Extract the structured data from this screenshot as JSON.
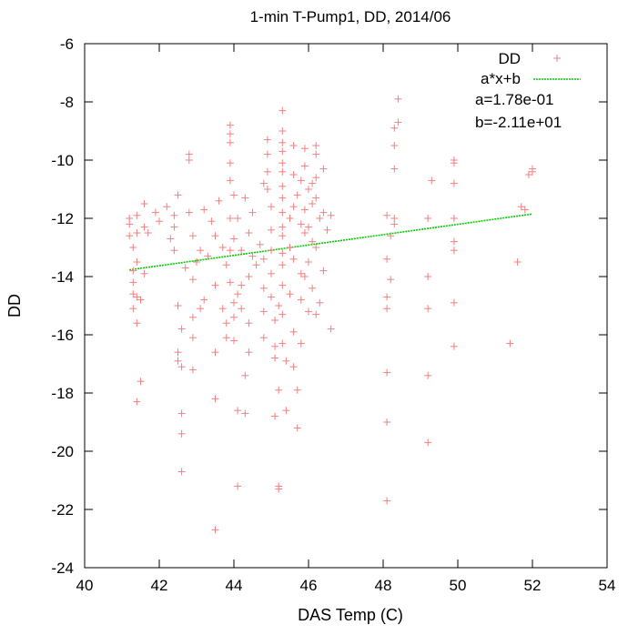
{
  "chart_data": {
    "type": "scatter",
    "title": "1-min T-Pump1, DD, 2014/06",
    "xlabel": "DAS Temp (C)",
    "ylabel": "DD",
    "xlim": [
      40,
      54
    ],
    "ylim": [
      -24,
      -6
    ],
    "xticks": [
      40,
      42,
      44,
      46,
      48,
      50,
      52,
      54
    ],
    "yticks": [
      -24,
      -22,
      -20,
      -18,
      -16,
      -14,
      -12,
      -10,
      -8,
      -6
    ],
    "xtick_labels": [
      "40",
      "42",
      "44",
      "46",
      "48",
      "50",
      "52",
      "54"
    ],
    "ytick_labels": [
      "-24",
      "-22",
      "-20",
      "-18",
      "-16",
      "-14",
      "-12",
      "-10",
      "-8",
      "-6"
    ],
    "grid": false,
    "legend_position": "top-right",
    "series": [
      {
        "name": "DD",
        "kind": "scatter",
        "marker": "plus",
        "color": "#f08080",
        "points": [
          [
            41.2,
            -12.0
          ],
          [
            41.2,
            -12.2
          ],
          [
            41.2,
            -12.6
          ],
          [
            41.3,
            -13.0
          ],
          [
            41.3,
            -13.8
          ],
          [
            41.3,
            -14.2
          ],
          [
            41.3,
            -14.6
          ],
          [
            41.3,
            -15.1
          ],
          [
            41.4,
            -11.9
          ],
          [
            41.4,
            -12.5
          ],
          [
            41.4,
            -13.5
          ],
          [
            41.4,
            -14.7
          ],
          [
            41.4,
            -15.6
          ],
          [
            41.4,
            -18.3
          ],
          [
            41.5,
            -17.6
          ],
          [
            41.5,
            -14.8
          ],
          [
            41.6,
            -11.5
          ],
          [
            41.6,
            -12.3
          ],
          [
            41.6,
            -13.9
          ],
          [
            41.7,
            -12.5
          ],
          [
            41.9,
            -11.8
          ],
          [
            42.0,
            -12.1
          ],
          [
            42.2,
            -11.6
          ],
          [
            42.3,
            -12.7
          ],
          [
            42.4,
            -11.9
          ],
          [
            42.4,
            -12.3
          ],
          [
            42.4,
            -13.1
          ],
          [
            42.5,
            -11.2
          ],
          [
            42.5,
            -15.0
          ],
          [
            42.5,
            -16.6
          ],
          [
            42.5,
            -16.9
          ],
          [
            42.6,
            -17.1
          ],
          [
            42.6,
            -18.7
          ],
          [
            42.6,
            -19.4
          ],
          [
            42.6,
            -20.7
          ],
          [
            42.6,
            -15.8
          ],
          [
            42.7,
            -13.7
          ],
          [
            42.8,
            -9.8
          ],
          [
            42.8,
            -10.0
          ],
          [
            42.8,
            -11.8
          ],
          [
            42.9,
            -12.6
          ],
          [
            42.9,
            -14.1
          ],
          [
            42.9,
            -15.4
          ],
          [
            42.9,
            -16.1
          ],
          [
            42.9,
            -17.2
          ],
          [
            43.0,
            -13.5
          ],
          [
            43.1,
            -13.1
          ],
          [
            43.1,
            -15.1
          ],
          [
            43.2,
            -11.7
          ],
          [
            43.2,
            -14.8
          ],
          [
            43.3,
            -13.3
          ],
          [
            43.4,
            -12.1
          ],
          [
            43.5,
            -12.6
          ],
          [
            43.5,
            -14.3
          ],
          [
            43.5,
            -16.6
          ],
          [
            43.5,
            -18.2
          ],
          [
            43.5,
            -22.7
          ],
          [
            43.6,
            -11.4
          ],
          [
            43.7,
            -13.0
          ],
          [
            43.7,
            -15.1
          ],
          [
            43.8,
            -13.6
          ],
          [
            43.8,
            -15.6
          ],
          [
            43.8,
            -16.1
          ],
          [
            43.9,
            -8.8
          ],
          [
            43.9,
            -9.1
          ],
          [
            43.9,
            -9.4
          ],
          [
            43.9,
            -10.1
          ],
          [
            43.9,
            -10.7
          ],
          [
            43.9,
            -12.0
          ],
          [
            43.9,
            -13.1
          ],
          [
            43.9,
            -14.2
          ],
          [
            44.0,
            -11.2
          ],
          [
            44.0,
            -12.7
          ],
          [
            44.0,
            -14.9
          ],
          [
            44.0,
            -15.4
          ],
          [
            44.0,
            -16.2
          ],
          [
            44.1,
            -18.6
          ],
          [
            44.1,
            -21.2
          ],
          [
            44.1,
            -12.0
          ],
          [
            44.1,
            -14.6
          ],
          [
            44.2,
            -13.1
          ],
          [
            44.2,
            -14.3
          ],
          [
            44.2,
            -15.1
          ],
          [
            44.3,
            -17.4
          ],
          [
            44.3,
            -18.7
          ],
          [
            44.3,
            -11.3
          ],
          [
            44.4,
            -12.5
          ],
          [
            44.4,
            -14.0
          ],
          [
            44.4,
            -15.6
          ],
          [
            44.4,
            -16.6
          ],
          [
            44.5,
            -13.3
          ],
          [
            44.5,
            -11.8
          ],
          [
            44.6,
            -13.6
          ],
          [
            44.7,
            -12.9
          ],
          [
            44.8,
            -10.8
          ],
          [
            44.8,
            -13.4
          ],
          [
            44.8,
            -14.4
          ],
          [
            44.8,
            -15.2
          ],
          [
            44.8,
            -16.1
          ],
          [
            44.9,
            -9.3
          ],
          [
            44.9,
            -9.8
          ],
          [
            44.9,
            -10.4
          ],
          [
            44.9,
            -11.0
          ],
          [
            45.0,
            -11.6
          ],
          [
            45.0,
            -12.4
          ],
          [
            45.0,
            -13.1
          ],
          [
            45.0,
            -13.9
          ],
          [
            45.0,
            -14.7
          ],
          [
            45.1,
            -15.5
          ],
          [
            45.1,
            -16.4
          ],
          [
            45.1,
            -16.8
          ],
          [
            45.1,
            -18.8
          ],
          [
            45.2,
            -21.3
          ],
          [
            45.2,
            -21.2
          ],
          [
            45.2,
            -17.9
          ],
          [
            45.2,
            -15.0
          ],
          [
            45.3,
            -8.3
          ],
          [
            45.3,
            -9.0
          ],
          [
            45.3,
            -9.4
          ],
          [
            45.3,
            -9.7
          ],
          [
            45.3,
            -10.1
          ],
          [
            45.3,
            -10.4
          ],
          [
            45.3,
            -10.9
          ],
          [
            45.3,
            -11.3
          ],
          [
            45.3,
            -11.8
          ],
          [
            45.3,
            -12.3
          ],
          [
            45.3,
            -12.6
          ],
          [
            45.3,
            -13.2
          ],
          [
            45.3,
            -13.6
          ],
          [
            45.3,
            -14.3
          ],
          [
            45.3,
            -15.3
          ],
          [
            45.3,
            -16.3
          ],
          [
            45.4,
            -16.9
          ],
          [
            45.4,
            -18.6
          ],
          [
            45.5,
            -12.0
          ],
          [
            45.5,
            -13.0
          ],
          [
            45.5,
            -14.6
          ],
          [
            45.6,
            -9.5
          ],
          [
            45.6,
            -10.5
          ],
          [
            45.6,
            -11.6
          ],
          [
            45.6,
            -13.4
          ],
          [
            45.6,
            -15.9
          ],
          [
            45.6,
            -17.1
          ],
          [
            45.7,
            -17.9
          ],
          [
            45.7,
            -19.2
          ],
          [
            45.7,
            -11.2
          ],
          [
            45.8,
            -10.7
          ],
          [
            45.8,
            -12.2
          ],
          [
            45.8,
            -13.9
          ],
          [
            45.8,
            -14.8
          ],
          [
            45.8,
            -16.3
          ],
          [
            45.9,
            -9.6
          ],
          [
            45.9,
            -10.2
          ],
          [
            45.9,
            -11.7
          ],
          [
            45.9,
            -12.5
          ],
          [
            45.9,
            -14.0
          ],
          [
            46.0,
            -11.0
          ],
          [
            46.0,
            -12.3
          ],
          [
            46.0,
            -13.5
          ],
          [
            46.0,
            -15.2
          ],
          [
            46.1,
            -10.8
          ],
          [
            46.1,
            -11.5
          ],
          [
            46.1,
            -12.8
          ],
          [
            46.1,
            -14.4
          ],
          [
            46.2,
            -9.5
          ],
          [
            46.2,
            -9.8
          ],
          [
            46.2,
            -10.6
          ],
          [
            46.2,
            -11.3
          ],
          [
            46.2,
            -13.0
          ],
          [
            46.2,
            -15.3
          ],
          [
            46.3,
            -12.0
          ],
          [
            46.3,
            -14.9
          ],
          [
            46.4,
            -10.3
          ],
          [
            46.4,
            -11.8
          ],
          [
            46.4,
            -13.8
          ],
          [
            46.5,
            -12.4
          ],
          [
            46.6,
            -11.9
          ],
          [
            46.6,
            -15.8
          ],
          [
            48.1,
            -11.9
          ],
          [
            48.1,
            -13.4
          ],
          [
            48.1,
            -14.7
          ],
          [
            48.1,
            -15.1
          ],
          [
            48.1,
            -17.3
          ],
          [
            48.1,
            -19.0
          ],
          [
            48.1,
            -21.7
          ],
          [
            48.2,
            -12.6
          ],
          [
            48.2,
            -14.1
          ],
          [
            48.3,
            -8.9
          ],
          [
            48.3,
            -9.5
          ],
          [
            48.3,
            -10.3
          ],
          [
            48.3,
            -12.0
          ],
          [
            48.3,
            -12.2
          ],
          [
            48.4,
            -7.9
          ],
          [
            48.4,
            -8.7
          ],
          [
            49.2,
            -12.0
          ],
          [
            49.2,
            -14.0
          ],
          [
            49.2,
            -15.1
          ],
          [
            49.2,
            -17.4
          ],
          [
            49.2,
            -19.7
          ],
          [
            49.3,
            -10.7
          ],
          [
            49.9,
            -10.0
          ],
          [
            49.9,
            -10.1
          ],
          [
            49.9,
            -10.8
          ],
          [
            49.9,
            -12.0
          ],
          [
            49.9,
            -12.8
          ],
          [
            49.9,
            -13.1
          ],
          [
            49.9,
            -14.9
          ],
          [
            49.9,
            -16.4
          ],
          [
            51.4,
            -16.3
          ],
          [
            51.6,
            -13.5
          ],
          [
            51.7,
            -11.6
          ],
          [
            51.8,
            -11.7
          ],
          [
            51.9,
            -10.5
          ],
          [
            52.0,
            -10.4
          ],
          [
            52.0,
            -10.3
          ]
        ]
      },
      {
        "name": "a*x+b",
        "kind": "line",
        "color": "#00cc00",
        "points": [
          [
            41.2,
            -13.77
          ],
          [
            52.0,
            -11.85
          ]
        ]
      }
    ],
    "annotations": [
      "a=1.78e-01",
      "b=-2.11e+01"
    ]
  }
}
